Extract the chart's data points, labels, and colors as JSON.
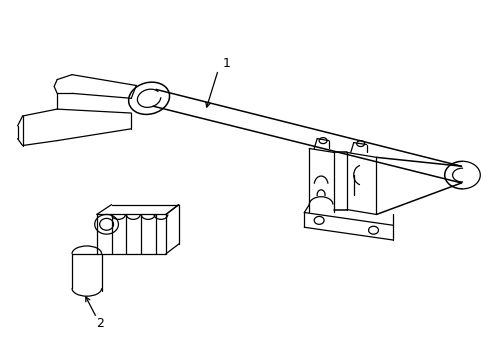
{
  "bg_color": "#ffffff",
  "line_color": "#000000",
  "lw": 0.9,
  "lw_thick": 1.1,
  "label1": "1",
  "label2": "2",
  "figsize": [
    4.89,
    3.6
  ],
  "dpi": 100
}
